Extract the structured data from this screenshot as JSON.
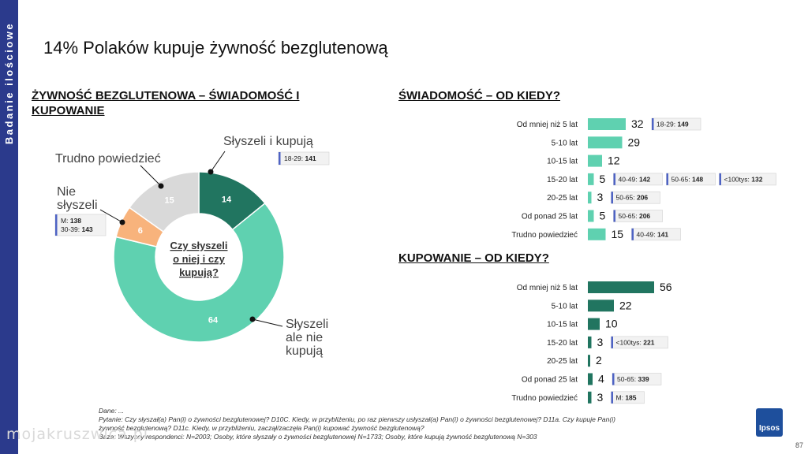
{
  "side_label": "Badanie ilościowe",
  "page_title": "14% Polaków kupuje żywność bezglutenową",
  "page_number": "87",
  "logo_text": "Ipsos",
  "watermark": "mojakruszwica.pl",
  "colors": {
    "dark_green": "#217560",
    "mint": "#5fd1b0",
    "orange": "#f8b37c",
    "grey": "#d9d9d9",
    "callout_accent": "#4e63c4",
    "sidebar": "#2b3a8c"
  },
  "footer": {
    "line1": "Dane: ...",
    "line2": "Pytanie: Czy słyszał(a) Pan(i) o żywności bezglutenowej? D10C. Kiedy, w przybliżeniu, po raz pierwszy usłyszał(a) Pan(i) o żywności bezglutenowej? D11a. Czy kupuje Pan(i)",
    "line3": "żywność bezglutenową? D11c. Kiedy, w przybliżeniu, zaczął/zaczęła Pan(i) kupować żywność bezglutenową?",
    "line4": "Baza: Wszyscy respondenci: N=2003; Osoby, które słyszały o żywności bezglutenowej N=1733; Osoby, które kupują żywność bezglutenową N=303"
  },
  "chart_data": [
    {
      "type": "pie",
      "title": "ŻYWNOŚĆ BEZGLUTENOWA – ŚWIADOMOŚĆ I KUPOWANIE",
      "center_label": [
        "Czy słyszeli",
        "o niej i czy",
        "kupują?"
      ],
      "slices": [
        {
          "label": "Słyszeli i kupują",
          "label_lines": [
            "Słyszeli i kupują"
          ],
          "value": 14,
          "color": "#217560",
          "callouts": [
            "18-29: 141"
          ]
        },
        {
          "label": "Słyszeli ale nie kupują",
          "label_lines": [
            "Słyszeli",
            "ale nie",
            "kupują"
          ],
          "value": 64,
          "color": "#5fd1b0",
          "callouts": []
        },
        {
          "label": "Nie słyszeli",
          "label_lines": [
            "Nie",
            "słyszeli"
          ],
          "value": 6,
          "color": "#f8b37c",
          "callouts": [
            "M: 138",
            "30-39: 143"
          ]
        },
        {
          "label": "Trudno powiedzieć",
          "label_lines": [
            "Trudno powiedzieć"
          ],
          "value": 15,
          "color": "#d9d9d9",
          "callouts": []
        }
      ]
    },
    {
      "type": "bar",
      "orientation": "horizontal",
      "title": "ŚWIADOMOŚĆ – OD KIEDY?",
      "color": "#5fd1b0",
      "categories": [
        "Od mniej niż 5 lat",
        "5-10 lat",
        "10-15 lat",
        "15-20 lat",
        "20-25 lat",
        "Od ponad 25 lat",
        "Trudno powiedzieć"
      ],
      "values": [
        32,
        29,
        12,
        5,
        3,
        5,
        15
      ],
      "callouts": [
        [
          "18-29: 149"
        ],
        [],
        [],
        [
          "40-49: 142",
          "50-65: 148",
          "<100tys: 132"
        ],
        [
          "50-65: 206"
        ],
        [
          "50-65: 206"
        ],
        [
          "40-49: 141"
        ]
      ]
    },
    {
      "type": "bar",
      "orientation": "horizontal",
      "title": "KUPOWANIE – OD KIEDY?",
      "color": "#217560",
      "categories": [
        "Od mniej niż 5 lat",
        "5-10 lat",
        "10-15 lat",
        "15-20 lat",
        "20-25 lat",
        "Od ponad 25 lat",
        "Trudno powiedzieć"
      ],
      "values": [
        56,
        22,
        10,
        3,
        2,
        4,
        3
      ],
      "callouts": [
        [],
        [],
        [],
        [
          "<100tys: 221"
        ],
        [],
        [
          "50-65: 339"
        ],
        [
          "M: 185"
        ]
      ]
    }
  ]
}
